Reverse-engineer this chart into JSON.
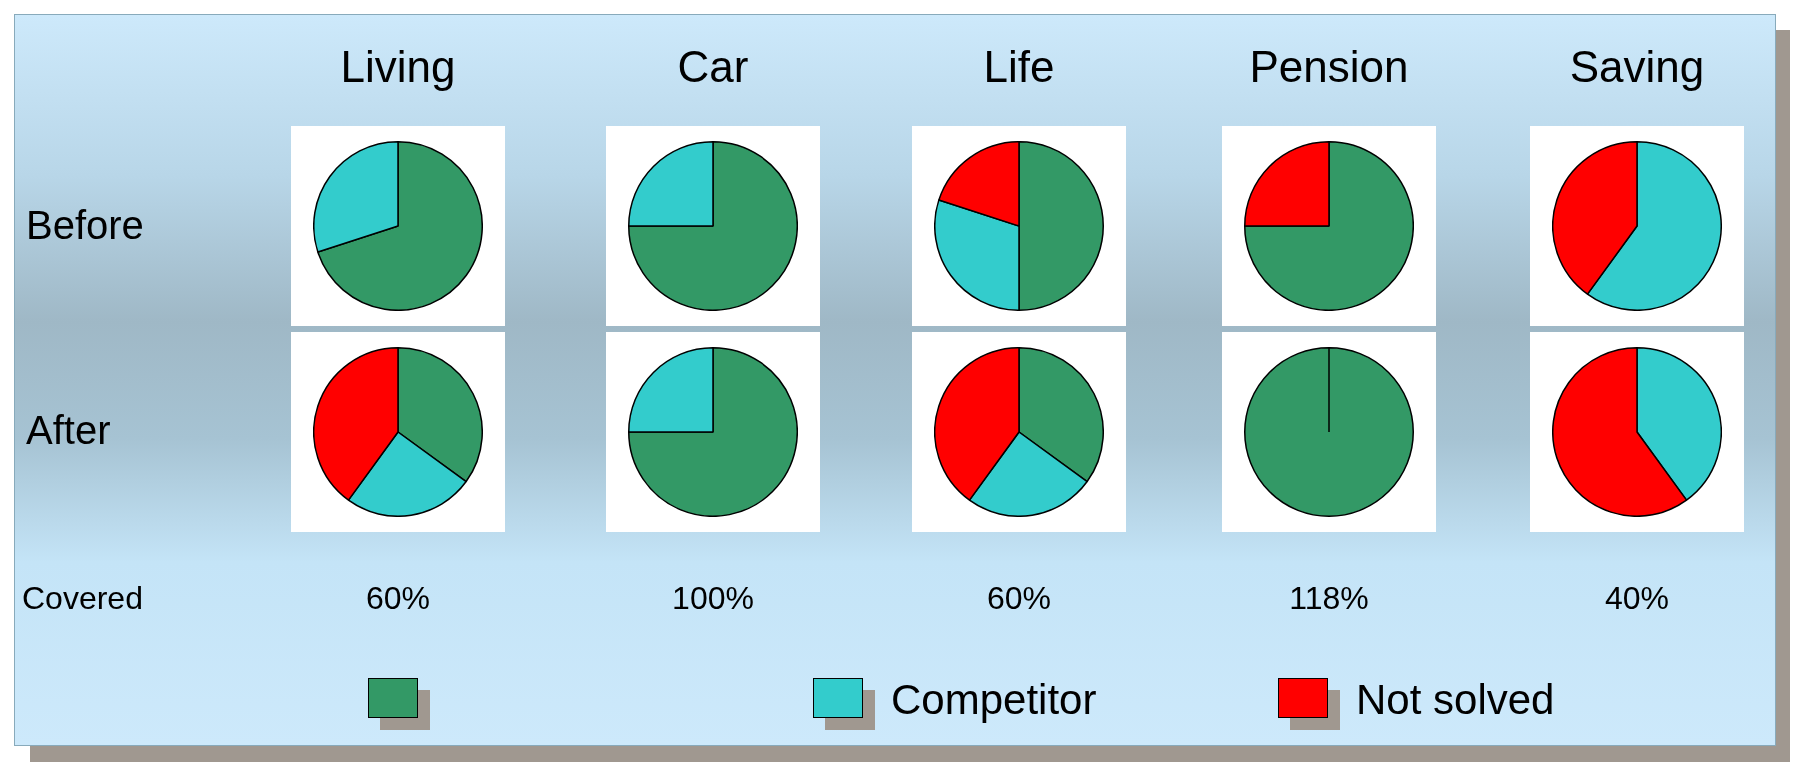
{
  "chart_data": [
    {
      "type": "pie",
      "title": "Living",
      "categories": [
        null,
        "Competitor",
        "Not solved"
      ],
      "values": [
        70,
        30,
        0
      ],
      "colors": [
        "#339966",
        "#33cccc",
        "#ff0000"
      ],
      "legend": "bottom"
    },
    {
      "type": "pie",
      "title": "Car",
      "values": [
        75,
        25,
        0
      ],
      "colors": [
        "#339966",
        "#33cccc",
        "#ff0000"
      ]
    },
    {
      "type": "pie",
      "title": "Life",
      "values": [
        50,
        30,
        20
      ],
      "colors": [
        "#339966",
        "#33cccc",
        "#ff0000"
      ]
    },
    {
      "type": "pie",
      "title": "Pension",
      "values": [
        75,
        0,
        25
      ],
      "colors": [
        "#339966",
        "#33cccc",
        "#ff0000"
      ]
    },
    {
      "type": "pie",
      "title": "Saving",
      "values": [
        0,
        60,
        40
      ],
      "colors": [
        "#339966",
        "#33cccc",
        "#ff0000"
      ]
    },
    {
      "type": "pie",
      "values": [
        35,
        25,
        40
      ],
      "colors": [
        "#339966",
        "#33cccc",
        "#ff0000"
      ]
    },
    {
      "type": "pie",
      "values": [
        75,
        25,
        0
      ],
      "colors": [
        "#339966",
        "#33cccc",
        "#ff0000"
      ]
    },
    {
      "type": "pie",
      "values": [
        35,
        25,
        40
      ],
      "colors": [
        "#339966",
        "#33cccc",
        "#ff0000"
      ]
    },
    {
      "type": "pie",
      "values": [
        100,
        0,
        0
      ],
      "colors": [
        "#339966",
        "#33cccc",
        "#ff0000"
      ]
    },
    {
      "type": "pie",
      "values": [
        0,
        40,
        60
      ],
      "colors": [
        "#339966",
        "#33cccc",
        "#ff0000"
      ]
    },
    {
      "type": "other",
      "annotations": [
        "Before",
        "After",
        "Covered",
        "60%",
        "100%",
        "60%",
        "118%",
        "40%"
      ]
    }
  ]
}
